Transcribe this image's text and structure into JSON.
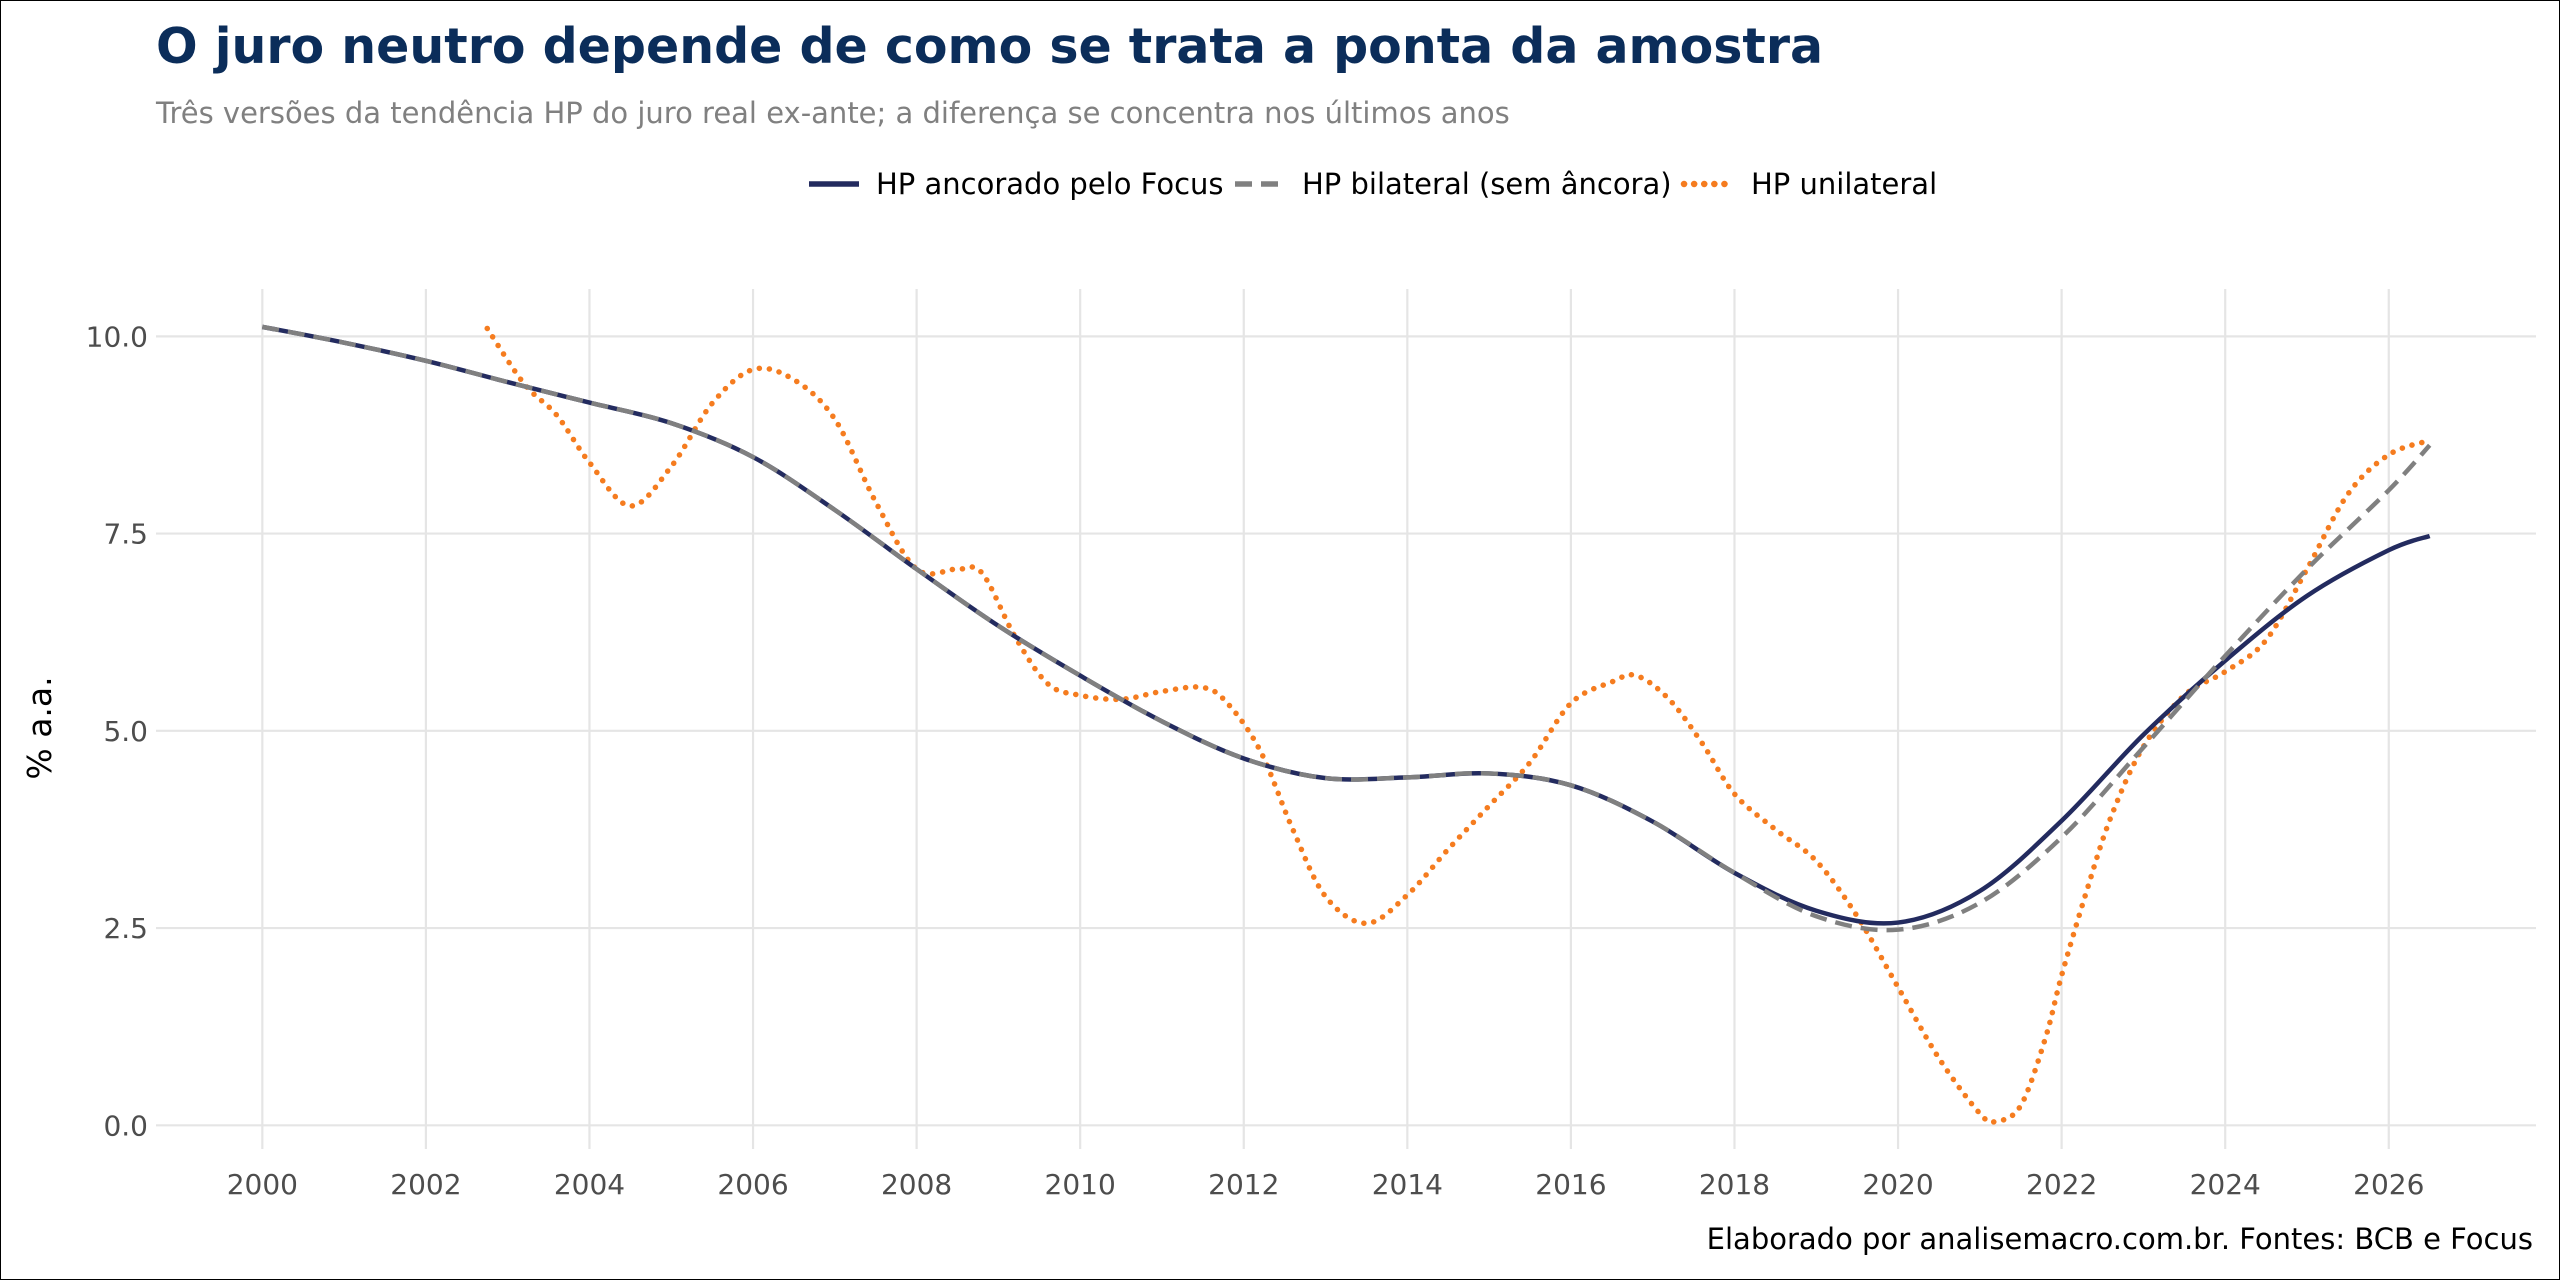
{
  "colors": {
    "title": "#0b2d5a",
    "subtitle": "#808080",
    "grid": "#e5e5e5",
    "focus": "#232b5f",
    "bilateral": "#808080",
    "unilateral": "#f57c1f"
  },
  "chart_data": {
    "type": "line",
    "title": "O juro neutro depende de como se trata a ponta da amostra",
    "subtitle": "Três versões da tendência HP do juro real ex-ante; a diferença se concentra nos últimos anos",
    "xlabel": "",
    "ylabel": "% a.a.",
    "caption": "Elaborado por analisemacro.com.br. Fontes: BCB e Focus",
    "xlim": [
      1998.7,
      2027.8
    ],
    "ylim": [
      -0.3,
      10.6
    ],
    "xticks": [
      2000,
      2002,
      2004,
      2006,
      2008,
      2010,
      2012,
      2014,
      2016,
      2018,
      2020,
      2022,
      2024,
      2026
    ],
    "yticks": [
      0.0,
      2.5,
      5.0,
      7.5,
      10.0
    ],
    "ytick_labels": [
      "0.0",
      "2.5",
      "5.0",
      "7.5",
      "10.0"
    ],
    "grid": true,
    "legend_position": "top",
    "series": [
      {
        "name": "HP ancorado pelo Focus",
        "color_key": "focus",
        "style": "solid",
        "x": [
          2000,
          2001,
          2002,
          2003,
          2004,
          2005,
          2006,
          2007,
          2008,
          2009,
          2010,
          2011,
          2012,
          2013,
          2014,
          2015,
          2016,
          2017,
          2018,
          2019,
          2020,
          2021,
          2022,
          2023,
          2024,
          2025,
          2026,
          2026.5
        ],
        "y": [
          10.12,
          9.92,
          9.69,
          9.42,
          9.16,
          8.9,
          8.47,
          7.8,
          7.05,
          6.33,
          5.7,
          5.12,
          4.65,
          4.4,
          4.41,
          4.46,
          4.31,
          3.85,
          3.2,
          2.72,
          2.57,
          2.97,
          3.86,
          4.95,
          5.89,
          6.71,
          7.29,
          7.47
        ]
      },
      {
        "name": "HP bilateral (sem âncora)",
        "color_key": "bilateral",
        "style": "dashed",
        "x": [
          2000,
          2001,
          2002,
          2003,
          2004,
          2005,
          2006,
          2007,
          2008,
          2009,
          2010,
          2011,
          2012,
          2013,
          2014,
          2015,
          2016,
          2017,
          2018,
          2019,
          2020,
          2021,
          2022,
          2023,
          2024,
          2025,
          2026,
          2026.5
        ],
        "y": [
          10.12,
          9.92,
          9.69,
          9.42,
          9.16,
          8.9,
          8.47,
          7.8,
          7.05,
          6.33,
          5.7,
          5.12,
          4.65,
          4.4,
          4.41,
          4.46,
          4.31,
          3.85,
          3.2,
          2.65,
          2.48,
          2.82,
          3.65,
          4.79,
          5.95,
          7.05,
          8.05,
          8.62
        ]
      },
      {
        "name": "HP unilateral",
        "color_key": "unilateral",
        "style": "dotted",
        "x": [
          2002.75,
          2003.2,
          2003.6,
          2004.0,
          2004.5,
          2005.0,
          2005.5,
          2006.0,
          2006.5,
          2007.0,
          2007.5,
          2008.0,
          2008.5,
          2008.8,
          2009.2,
          2009.6,
          2010.0,
          2010.5,
          2011.0,
          2011.5,
          2011.8,
          2012.2,
          2012.6,
          2013.0,
          2013.5,
          2014.0,
          2014.5,
          2015.0,
          2015.5,
          2016.0,
          2016.5,
          2016.8,
          2017.2,
          2017.6,
          2018.0,
          2018.5,
          2019.0,
          2019.5,
          2020.0,
          2020.5,
          2021.0,
          2021.2,
          2021.5,
          2021.8,
          2022.0,
          2022.3,
          2022.6,
          2023.0,
          2023.5,
          2024.0,
          2024.5,
          2025.0,
          2025.5,
          2026.0,
          2026.5
        ],
        "y": [
          10.1,
          9.4,
          9.0,
          8.4,
          7.85,
          8.35,
          9.15,
          9.58,
          9.45,
          8.95,
          7.9,
          7.05,
          7.05,
          7.0,
          6.2,
          5.6,
          5.45,
          5.4,
          5.5,
          5.55,
          5.35,
          4.75,
          3.75,
          2.9,
          2.56,
          2.92,
          3.5,
          4.05,
          4.6,
          5.35,
          5.62,
          5.7,
          5.4,
          4.85,
          4.2,
          3.75,
          3.35,
          2.65,
          1.75,
          0.85,
          0.15,
          0.05,
          0.25,
          1.1,
          1.9,
          2.95,
          3.9,
          4.8,
          5.45,
          5.75,
          6.15,
          7.05,
          8.0,
          8.5,
          8.68
        ]
      }
    ]
  }
}
